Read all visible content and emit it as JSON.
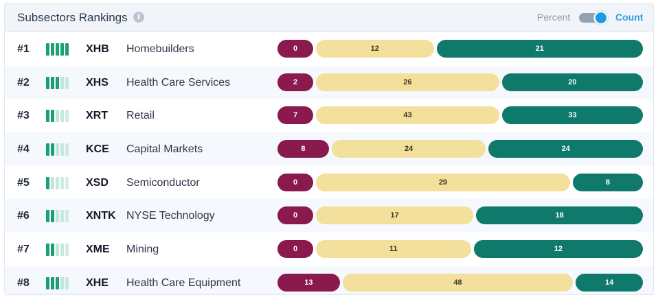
{
  "header": {
    "title": "Subsectors Rankings",
    "info_icon": "info-icon",
    "toggle_left_label": "Percent",
    "toggle_right_label": "Count",
    "toggle_state": "Count"
  },
  "colors": {
    "negative": "#8a1a4e",
    "neutral": "#f3e09c",
    "positive": "#0f7a6c",
    "strength_on": "#1b9f77",
    "strength_off": "#bfe6d6"
  },
  "rows": [
    {
      "rank": "#1",
      "ticker": "XHB",
      "name": "Homebuilders",
      "strength": 5,
      "negative": 0,
      "neutral": 12,
      "positive": 21
    },
    {
      "rank": "#2",
      "ticker": "XHS",
      "name": "Health Care Services",
      "strength": 3,
      "negative": 2,
      "neutral": 26,
      "positive": 20
    },
    {
      "rank": "#3",
      "ticker": "XRT",
      "name": "Retail",
      "strength": 2,
      "negative": 7,
      "neutral": 43,
      "positive": 33
    },
    {
      "rank": "#4",
      "ticker": "KCE",
      "name": "Capital Markets",
      "strength": 2,
      "negative": 8,
      "neutral": 24,
      "positive": 24
    },
    {
      "rank": "#5",
      "ticker": "XSD",
      "name": "Semiconductor",
      "strength": 1,
      "negative": 0,
      "neutral": 29,
      "positive": 8
    },
    {
      "rank": "#6",
      "ticker": "XNTK",
      "name": "NYSE Technology",
      "strength": 2,
      "negative": 0,
      "neutral": 17,
      "positive": 18
    },
    {
      "rank": "#7",
      "ticker": "XME",
      "name": "Mining",
      "strength": 2,
      "negative": 0,
      "neutral": 11,
      "positive": 12
    },
    {
      "rank": "#8",
      "ticker": "XHE",
      "name": "Health Care Equipment",
      "strength": 3,
      "negative": 13,
      "neutral": 48,
      "positive": 14
    }
  ]
}
